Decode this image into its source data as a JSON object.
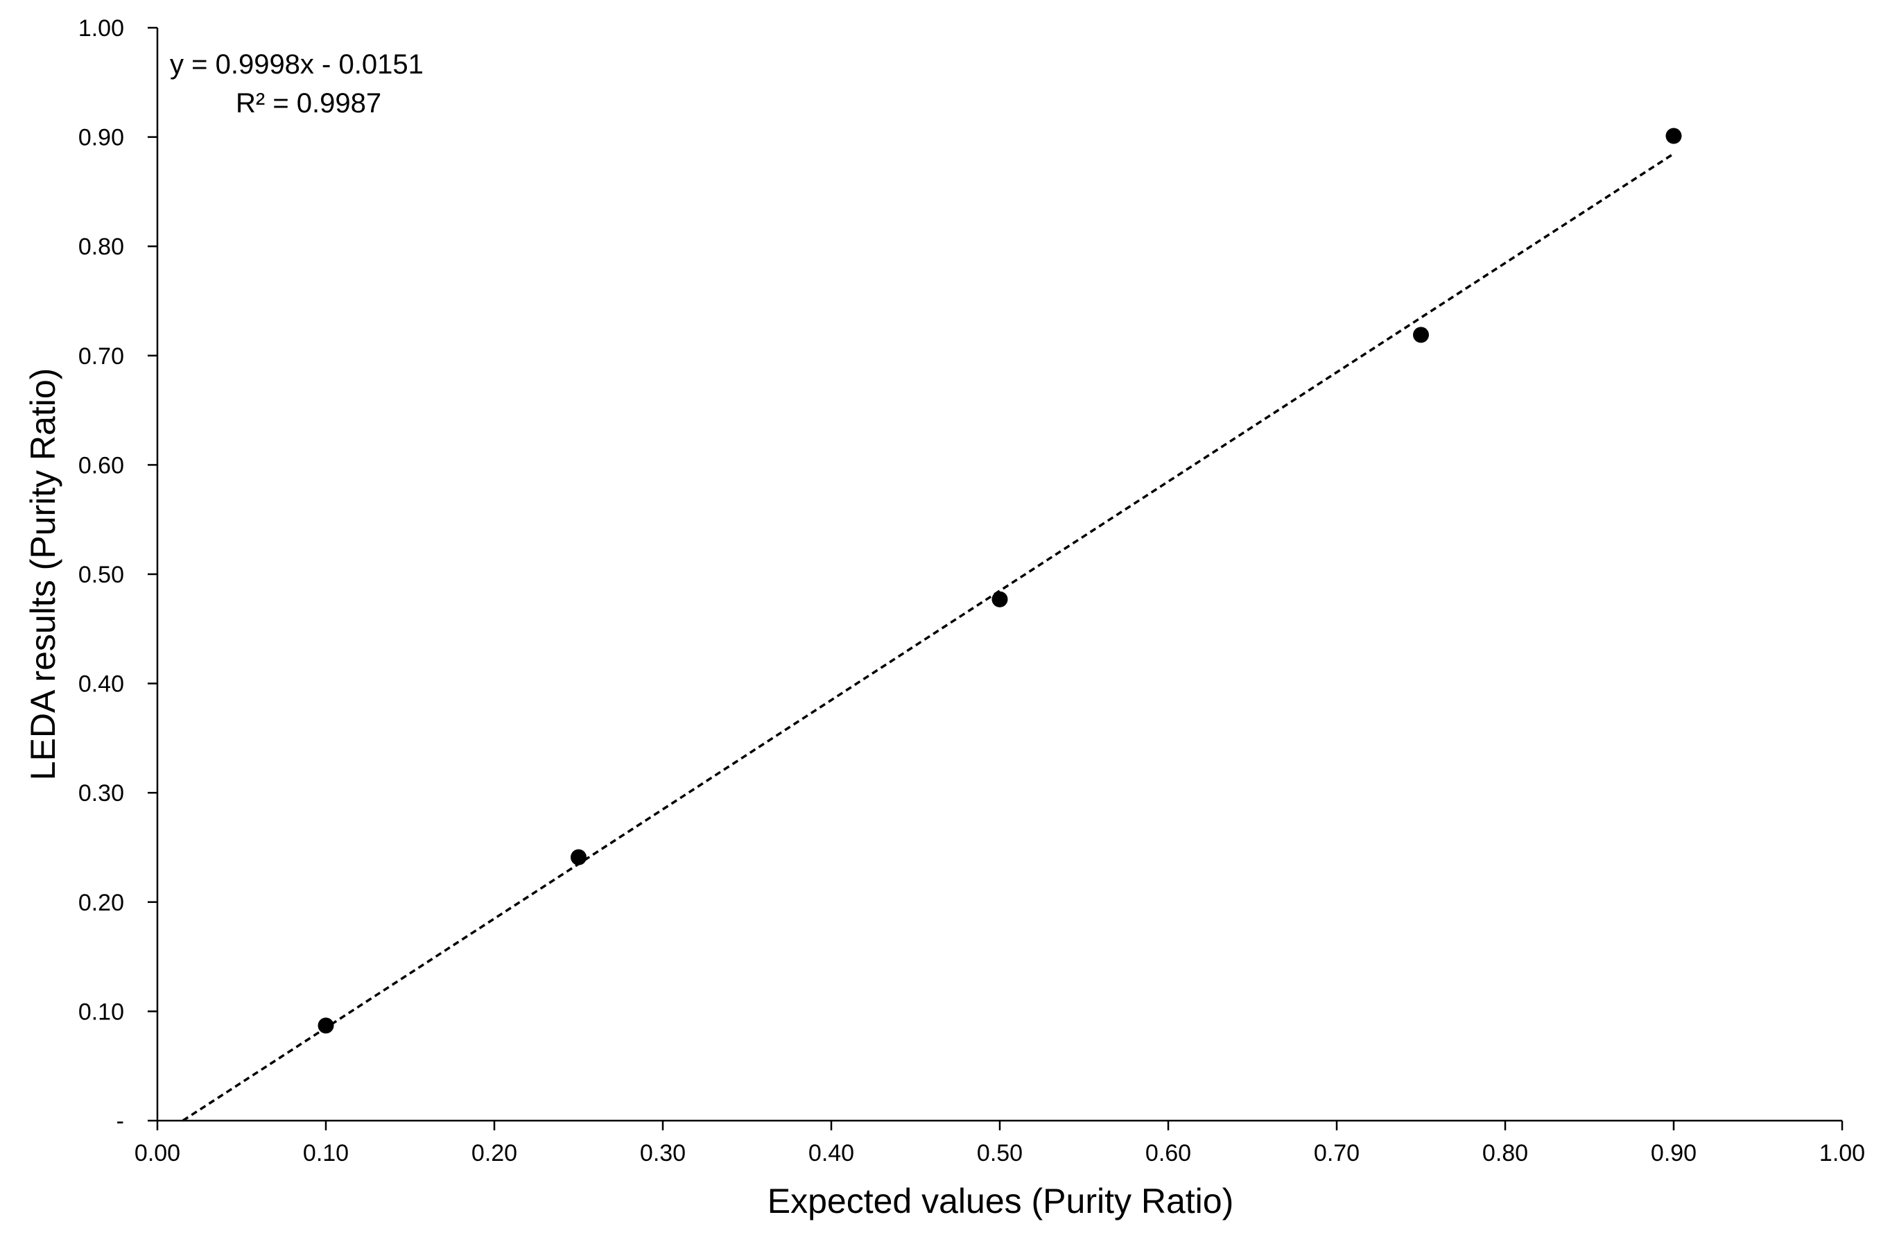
{
  "chart_data": {
    "type": "scatter",
    "xlabel": "Expected values (Purity Ratio)",
    "ylabel": "LEDA results (Purity Ratio)",
    "xlim": [
      0,
      1
    ],
    "ylim": [
      0,
      1
    ],
    "x_ticks": [
      "0.00",
      "0.10",
      "0.20",
      "0.30",
      "0.40",
      "0.50",
      "0.60",
      "0.70",
      "0.80",
      "0.90",
      "1.00"
    ],
    "y_ticks": [
      "-",
      "0.10",
      "0.20",
      "0.30",
      "0.40",
      "0.50",
      "0.60",
      "0.70",
      "0.80",
      "0.90",
      "1.00"
    ],
    "grid": false,
    "legend": "none",
    "series": [
      {
        "points": [
          {
            "x": 0.1,
            "y": 0.087
          },
          {
            "x": 0.25,
            "y": 0.241
          },
          {
            "x": 0.5,
            "y": 0.477
          },
          {
            "x": 0.75,
            "y": 0.719
          },
          {
            "x": 0.9,
            "y": 0.901
          }
        ],
        "color": "#000000"
      }
    ],
    "trendline": {
      "style": "dashed",
      "color": "#000000",
      "slope": 0.9998,
      "intercept": -0.0151,
      "x_range": [
        0.0151,
        0.9
      ],
      "equation": "y = 0.9998x - 0.0151",
      "r_squared": "R² = 0.9987"
    }
  }
}
